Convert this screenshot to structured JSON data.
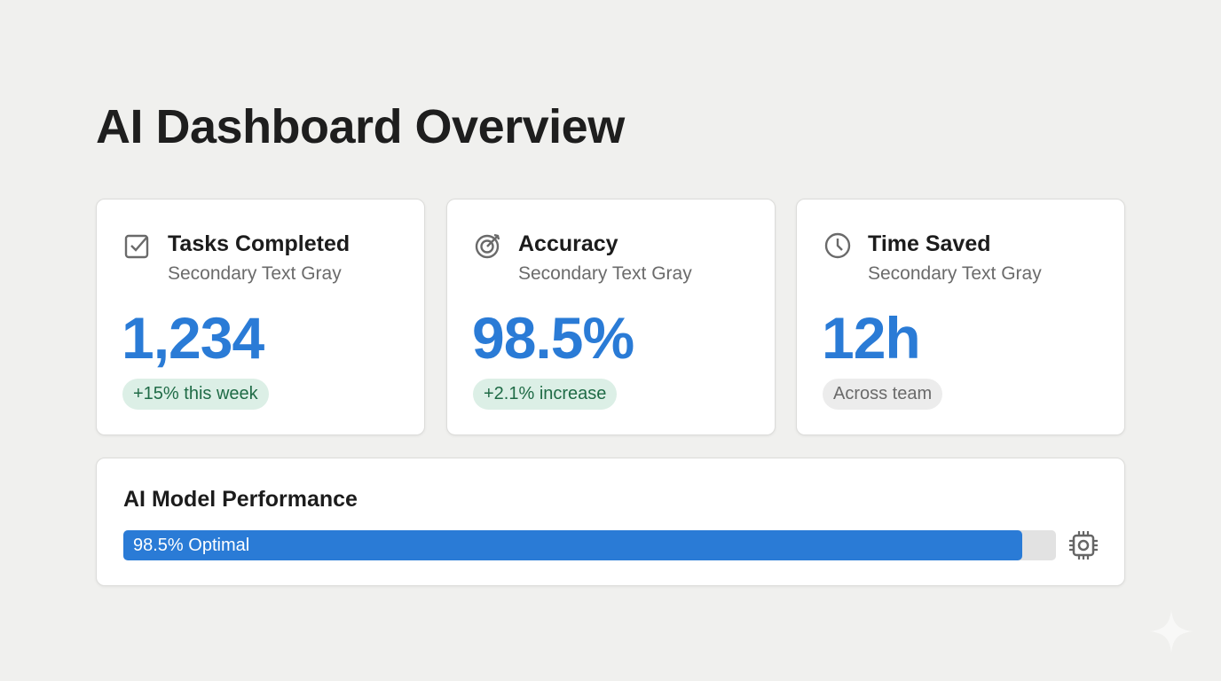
{
  "header": {
    "title": "AI Dashboard Overview"
  },
  "cards": [
    {
      "icon": "checkbox-icon",
      "title": "Tasks Completed",
      "subtitle": "Secondary Text Gray",
      "value": "1,234",
      "badge": "+15% this week",
      "badge_color": "#dcefe6"
    },
    {
      "icon": "target-icon",
      "title": "Accuracy",
      "subtitle": "Secondary Text Gray",
      "value": "98.5%",
      "badge": "+2.1% increase",
      "badge_color": "#dcefe6"
    },
    {
      "icon": "clock-icon",
      "title": "Time Saved",
      "subtitle": "Secondary Text Gray",
      "value": "12h",
      "badge": "Across team",
      "badge_color": "#ececec"
    }
  ],
  "performance": {
    "title": "AI Model Performance",
    "progress_label": "98.5% Optimal",
    "progress_percent": 98.5,
    "icon": "cpu-chip-icon"
  },
  "colors": {
    "accent": "#2a7bd6",
    "background": "#f0f0ee"
  }
}
